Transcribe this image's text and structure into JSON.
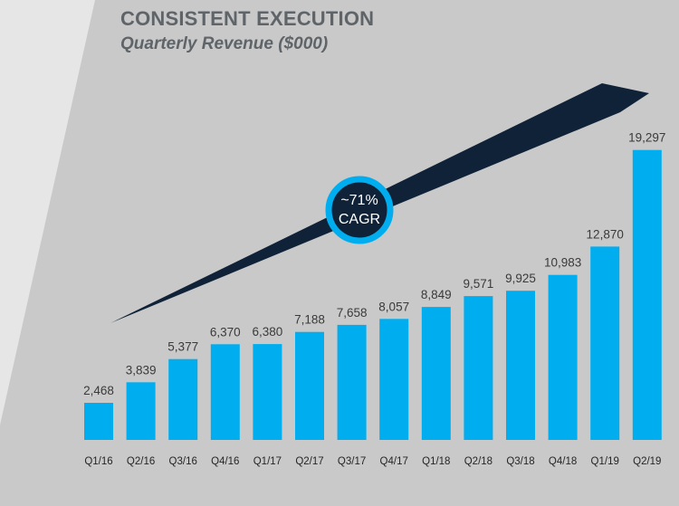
{
  "header": {
    "title": "CONSISTENT EXECUTION",
    "subtitle": "Quarterly Revenue ($000)"
  },
  "colors": {
    "bar": "#00aeef",
    "arrow": "#0f2238",
    "badge_ring": "#00aeef",
    "badge_fill": "#0f2238",
    "background_panel": "#c9c9c9",
    "background_outer": "#e6e6e6"
  },
  "badge": {
    "line1": "~71%",
    "line2": "CAGR"
  },
  "chart_data": {
    "type": "bar",
    "title": "Quarterly Revenue ($000)",
    "xlabel": "",
    "ylabel": "",
    "ylim": [
      0,
      20000
    ],
    "grid": false,
    "categories": [
      "Q1/16",
      "Q2/16",
      "Q3/16",
      "Q4/16",
      "Q1/17",
      "Q2/17",
      "Q3/17",
      "Q4/17",
      "Q1/18",
      "Q2/18",
      "Q3/18",
      "Q4/18",
      "Q1/19",
      "Q2/19"
    ],
    "values": [
      2468,
      3839,
      5377,
      6370,
      6380,
      7188,
      7658,
      8057,
      8849,
      9571,
      9925,
      10983,
      12870,
      19297
    ],
    "value_labels": [
      "2,468",
      "3,839",
      "5,377",
      "6,370",
      "6,380",
      "7,188",
      "7,658",
      "8,057",
      "8,849",
      "9,571",
      "9,925",
      "10,983",
      "12,870",
      "19,297"
    ],
    "annotation": "~71% CAGR"
  }
}
